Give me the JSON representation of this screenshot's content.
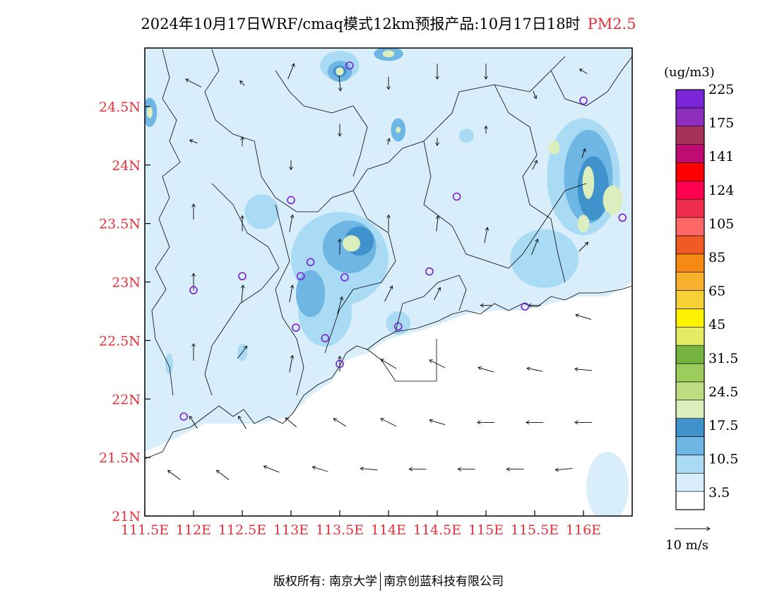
{
  "title": {
    "main": "2024年10月17日WRF/cmaq模式12km预报产品:10月17日18时",
    "variable": "PM2.5"
  },
  "map": {
    "lon_range": [
      111.5,
      116.5
    ],
    "lat_range": [
      21.0,
      25.0
    ],
    "lat_ticks": [
      "24.5N",
      "24N",
      "23.5N",
      "23N",
      "22.5N",
      "22N",
      "21.5N",
      "21N"
    ],
    "lat_values": [
      24.5,
      24.0,
      23.5,
      23.0,
      22.5,
      22.0,
      21.5,
      21.0
    ],
    "lon_ticks": [
      "111.5E",
      "112E",
      "112.5E",
      "113E",
      "113.5E",
      "114E",
      "114.5E",
      "115E",
      "115.5E",
      "116E"
    ],
    "lon_values": [
      111.5,
      112.0,
      112.5,
      113.0,
      113.5,
      114.0,
      114.5,
      115.0,
      115.5,
      116.0
    ],
    "background_color": "#ffffff",
    "land_border_color": "#000000",
    "station_color": "#7b1fd6",
    "stations": [
      {
        "lon": 113.6,
        "lat": 24.85
      },
      {
        "lon": 116.0,
        "lat": 24.55
      },
      {
        "lon": 113.0,
        "lat": 23.7
      },
      {
        "lon": 114.7,
        "lat": 23.73
      },
      {
        "lon": 116.4,
        "lat": 23.55
      },
      {
        "lon": 113.2,
        "lat": 23.17
      },
      {
        "lon": 112.5,
        "lat": 23.05
      },
      {
        "lon": 113.1,
        "lat": 23.05
      },
      {
        "lon": 113.55,
        "lat": 23.04
      },
      {
        "lon": 114.42,
        "lat": 23.09
      },
      {
        "lon": 112.0,
        "lat": 22.93
      },
      {
        "lon": 115.4,
        "lat": 22.79
      },
      {
        "lon": 113.05,
        "lat": 22.61
      },
      {
        "lon": 113.35,
        "lat": 22.52
      },
      {
        "lon": 114.1,
        "lat": 22.62
      },
      {
        "lon": 113.5,
        "lat": 22.3
      },
      {
        "lon": 111.9,
        "lat": 21.85
      }
    ],
    "pollution_blobs": [
      {
        "lon": 113.5,
        "lat": 23.2,
        "rx": 1.0,
        "ry": 0.8,
        "level": 2
      },
      {
        "lon": 113.6,
        "lat": 23.3,
        "rx": 0.55,
        "ry": 0.45,
        "level": 3
      },
      {
        "lon": 113.7,
        "lat": 23.35,
        "rx": 0.3,
        "ry": 0.25,
        "level": 4
      },
      {
        "lon": 113.62,
        "lat": 23.33,
        "rx": 0.18,
        "ry": 0.14,
        "level": 5
      },
      {
        "lon": 113.35,
        "lat": 22.75,
        "rx": 0.55,
        "ry": 0.6,
        "level": 2
      },
      {
        "lon": 113.2,
        "lat": 22.9,
        "rx": 0.3,
        "ry": 0.4,
        "level": 3
      },
      {
        "lon": 116.0,
        "lat": 23.9,
        "rx": 0.75,
        "ry": 1.0,
        "level": 2
      },
      {
        "lon": 116.05,
        "lat": 23.9,
        "rx": 0.5,
        "ry": 0.8,
        "level": 3
      },
      {
        "lon": 116.1,
        "lat": 23.8,
        "rx": 0.32,
        "ry": 0.55,
        "level": 4
      },
      {
        "lon": 116.05,
        "lat": 23.85,
        "rx": 0.12,
        "ry": 0.28,
        "level": 5
      },
      {
        "lon": 115.7,
        "lat": 24.15,
        "rx": 0.12,
        "ry": 0.12,
        "level": 5
      },
      {
        "lon": 116.3,
        "lat": 23.7,
        "rx": 0.2,
        "ry": 0.25,
        "level": 5
      },
      {
        "lon": 116.0,
        "lat": 23.5,
        "rx": 0.12,
        "ry": 0.15,
        "level": 5
      },
      {
        "lon": 113.5,
        "lat": 24.85,
        "rx": 0.4,
        "ry": 0.25,
        "level": 2
      },
      {
        "lon": 113.5,
        "lat": 24.8,
        "rx": 0.25,
        "ry": 0.18,
        "level": 3
      },
      {
        "lon": 113.5,
        "lat": 24.8,
        "rx": 0.14,
        "ry": 0.1,
        "level": 4
      },
      {
        "lon": 113.5,
        "lat": 24.8,
        "rx": 0.08,
        "ry": 0.07,
        "level": 5
      },
      {
        "lon": 114.0,
        "lat": 24.95,
        "rx": 0.3,
        "ry": 0.12,
        "level": 3
      },
      {
        "lon": 114.0,
        "lat": 24.95,
        "rx": 0.12,
        "ry": 0.06,
        "level": 5
      },
      {
        "lon": 111.55,
        "lat": 24.45,
        "rx": 0.15,
        "ry": 0.25,
        "level": 3
      },
      {
        "lon": 111.55,
        "lat": 24.45,
        "rx": 0.06,
        "ry": 0.1,
        "level": 5
      },
      {
        "lon": 114.1,
        "lat": 24.3,
        "rx": 0.15,
        "ry": 0.2,
        "level": 3
      },
      {
        "lon": 114.1,
        "lat": 24.3,
        "rx": 0.05,
        "ry": 0.05,
        "level": 5
      },
      {
        "lon": 115.6,
        "lat": 23.2,
        "rx": 0.7,
        "ry": 0.5,
        "level": 2
      },
      {
        "lon": 112.7,
        "lat": 23.6,
        "rx": 0.35,
        "ry": 0.3,
        "level": 2
      },
      {
        "lon": 112.5,
        "lat": 22.4,
        "rx": 0.1,
        "ry": 0.15,
        "level": 2
      },
      {
        "lon": 111.75,
        "lat": 22.3,
        "rx": 0.08,
        "ry": 0.18,
        "level": 2
      },
      {
        "lon": 114.8,
        "lat": 24.25,
        "rx": 0.15,
        "ry": 0.12,
        "level": 2
      },
      {
        "lon": 114.1,
        "lat": 22.65,
        "rx": 0.25,
        "ry": 0.2,
        "level": 2
      }
    ],
    "wind_arrows": [
      {
        "lon": 112.0,
        "lat": 24.7,
        "u": -1.0,
        "v": 0.5
      },
      {
        "lon": 112.5,
        "lat": 24.7,
        "u": -0.3,
        "v": 0.3
      },
      {
        "lon": 113.0,
        "lat": 24.8,
        "u": 0.4,
        "v": 1.0
      },
      {
        "lon": 113.5,
        "lat": 24.7,
        "u": 0.1,
        "v": -1.0
      },
      {
        "lon": 114.0,
        "lat": 24.7,
        "u": 0.0,
        "v": -0.8
      },
      {
        "lon": 114.5,
        "lat": 24.8,
        "u": 0.0,
        "v": -1.0
      },
      {
        "lon": 115.0,
        "lat": 24.8,
        "u": 0.0,
        "v": -1.0
      },
      {
        "lon": 115.5,
        "lat": 24.6,
        "u": 0.2,
        "v": -0.5
      },
      {
        "lon": 116.0,
        "lat": 24.8,
        "u": -0.5,
        "v": 0.3
      },
      {
        "lon": 112.0,
        "lat": 24.2,
        "u": -0.5,
        "v": 0.2
      },
      {
        "lon": 112.5,
        "lat": 24.2,
        "u": 0.0,
        "v": 0.6
      },
      {
        "lon": 113.0,
        "lat": 24.0,
        "u": 0.0,
        "v": -0.6
      },
      {
        "lon": 113.5,
        "lat": 24.3,
        "u": 0.0,
        "v": -0.8
      },
      {
        "lon": 114.0,
        "lat": 24.2,
        "u": 0.1,
        "v": 0.4
      },
      {
        "lon": 114.5,
        "lat": 24.2,
        "u": 0.0,
        "v": -0.5
      },
      {
        "lon": 115.0,
        "lat": 24.3,
        "u": 0.0,
        "v": 0.5
      },
      {
        "lon": 115.5,
        "lat": 24.0,
        "u": 0.3,
        "v": 0.6
      },
      {
        "lon": 116.0,
        "lat": 24.1,
        "u": 0.2,
        "v": 0.6
      },
      {
        "lon": 112.0,
        "lat": 23.6,
        "u": 0.0,
        "v": 1.0
      },
      {
        "lon": 112.5,
        "lat": 23.5,
        "u": 0.0,
        "v": 1.0
      },
      {
        "lon": 113.0,
        "lat": 23.5,
        "u": 0.2,
        "v": 1.1
      },
      {
        "lon": 113.5,
        "lat": 23.3,
        "u": 0.0,
        "v": 1.0
      },
      {
        "lon": 114.0,
        "lat": 23.5,
        "u": 0.0,
        "v": 1.1
      },
      {
        "lon": 114.5,
        "lat": 23.5,
        "u": 0.1,
        "v": 1.0
      },
      {
        "lon": 115.0,
        "lat": 23.4,
        "u": 0.2,
        "v": 1.0
      },
      {
        "lon": 115.5,
        "lat": 23.3,
        "u": 0.4,
        "v": 1.0
      },
      {
        "lon": 116.0,
        "lat": 23.3,
        "u": 0.6,
        "v": 0.6
      },
      {
        "lon": 112.0,
        "lat": 23.0,
        "u": 0.0,
        "v": 1.1
      },
      {
        "lon": 112.5,
        "lat": 22.9,
        "u": 0.1,
        "v": 1.1
      },
      {
        "lon": 113.0,
        "lat": 22.9,
        "u": 0.2,
        "v": 1.1
      },
      {
        "lon": 113.5,
        "lat": 22.8,
        "u": 0.3,
        "v": 1.1
      },
      {
        "lon": 114.0,
        "lat": 22.9,
        "u": 0.5,
        "v": 1.0
      },
      {
        "lon": 114.5,
        "lat": 22.9,
        "u": 0.4,
        "v": 0.8
      },
      {
        "lon": 115.0,
        "lat": 22.8,
        "u": -0.7,
        "v": 0.0
      },
      {
        "lon": 115.5,
        "lat": 22.8,
        "u": -0.8,
        "v": 0.0
      },
      {
        "lon": 116.0,
        "lat": 22.7,
        "u": -1.0,
        "v": 0.3
      },
      {
        "lon": 112.0,
        "lat": 22.4,
        "u": 0.0,
        "v": 1.1
      },
      {
        "lon": 112.5,
        "lat": 22.4,
        "u": 0.6,
        "v": 0.8
      },
      {
        "lon": 113.0,
        "lat": 22.3,
        "u": 0.2,
        "v": 1.1
      },
      {
        "lon": 113.5,
        "lat": 22.3,
        "u": 0.0,
        "v": 1.0
      },
      {
        "lon": 114.0,
        "lat": 22.3,
        "u": -1.0,
        "v": 0.6
      },
      {
        "lon": 114.5,
        "lat": 22.3,
        "u": -1.0,
        "v": 0.5
      },
      {
        "lon": 115.0,
        "lat": 22.25,
        "u": -1.0,
        "v": 0.3
      },
      {
        "lon": 115.5,
        "lat": 22.25,
        "u": -1.0,
        "v": 0.2
      },
      {
        "lon": 116.0,
        "lat": 22.25,
        "u": -1.1,
        "v": 0.1
      },
      {
        "lon": 112.0,
        "lat": 21.8,
        "u": -0.5,
        "v": 0.8
      },
      {
        "lon": 112.5,
        "lat": 21.8,
        "u": -0.5,
        "v": 0.8
      },
      {
        "lon": 113.0,
        "lat": 21.8,
        "u": -0.7,
        "v": 0.6
      },
      {
        "lon": 113.5,
        "lat": 21.8,
        "u": -0.8,
        "v": 0.5
      },
      {
        "lon": 114.0,
        "lat": 21.8,
        "u": -1.0,
        "v": 0.5
      },
      {
        "lon": 114.5,
        "lat": 21.8,
        "u": -1.0,
        "v": 0.3
      },
      {
        "lon": 115.0,
        "lat": 21.8,
        "u": -1.1,
        "v": 0.0
      },
      {
        "lon": 115.5,
        "lat": 21.8,
        "u": -1.1,
        "v": 0.0
      },
      {
        "lon": 116.0,
        "lat": 21.8,
        "u": -1.1,
        "v": 0.0
      },
      {
        "lon": 111.8,
        "lat": 21.35,
        "u": -0.8,
        "v": 0.6
      },
      {
        "lon": 112.3,
        "lat": 21.35,
        "u": -0.8,
        "v": 0.6
      },
      {
        "lon": 112.8,
        "lat": 21.4,
        "u": -1.0,
        "v": 0.4
      },
      {
        "lon": 113.3,
        "lat": 21.4,
        "u": -1.0,
        "v": 0.3
      },
      {
        "lon": 113.8,
        "lat": 21.4,
        "u": -1.1,
        "v": 0.1
      },
      {
        "lon": 114.3,
        "lat": 21.4,
        "u": -1.1,
        "v": 0.0
      },
      {
        "lon": 114.8,
        "lat": 21.4,
        "u": -1.1,
        "v": 0.0
      },
      {
        "lon": 115.3,
        "lat": 21.4,
        "u": -1.1,
        "v": 0.0
      },
      {
        "lon": 115.8,
        "lat": 21.4,
        "u": -1.1,
        "v": -0.1
      }
    ]
  },
  "colorbar": {
    "unit": "(ug/m3)",
    "colors": [
      "#ffffff",
      "#d9eefb",
      "#a9dbf5",
      "#6eb6e4",
      "#4092cc",
      "#dcedbe",
      "#bedd82",
      "#9bcc5c",
      "#76b441",
      "#e6eb66",
      "#fff200",
      "#f7cf36",
      "#f9b02f",
      "#f78a15",
      "#f15a24",
      "#ff6666",
      "#ee2c4c",
      "#ff0050",
      "#ff0000",
      "#c00a74",
      "#a8315a",
      "#8e2ebe",
      "#7a26d8"
    ],
    "labels": [
      {
        "text": "3.5",
        "index": 1
      },
      {
        "text": "10.5",
        "index": 3
      },
      {
        "text": "17.5",
        "index": 5
      },
      {
        "text": "24.5",
        "index": 7
      },
      {
        "text": "31.5",
        "index": 9
      },
      {
        "text": "45",
        "index": 11
      },
      {
        "text": "65",
        "index": 13
      },
      {
        "text": "85",
        "index": 15
      },
      {
        "text": "105",
        "index": 17
      },
      {
        "text": "124",
        "index": 19
      },
      {
        "text": "141",
        "index": 21
      },
      {
        "text": "175",
        "index": 23
      },
      {
        "text": "225",
        "index": 25
      }
    ]
  },
  "wind_legend": {
    "label": "10 m/s"
  },
  "footer": {
    "left": "版权所有: 南京大学",
    "right": "南京创蓝科技有限公司"
  }
}
